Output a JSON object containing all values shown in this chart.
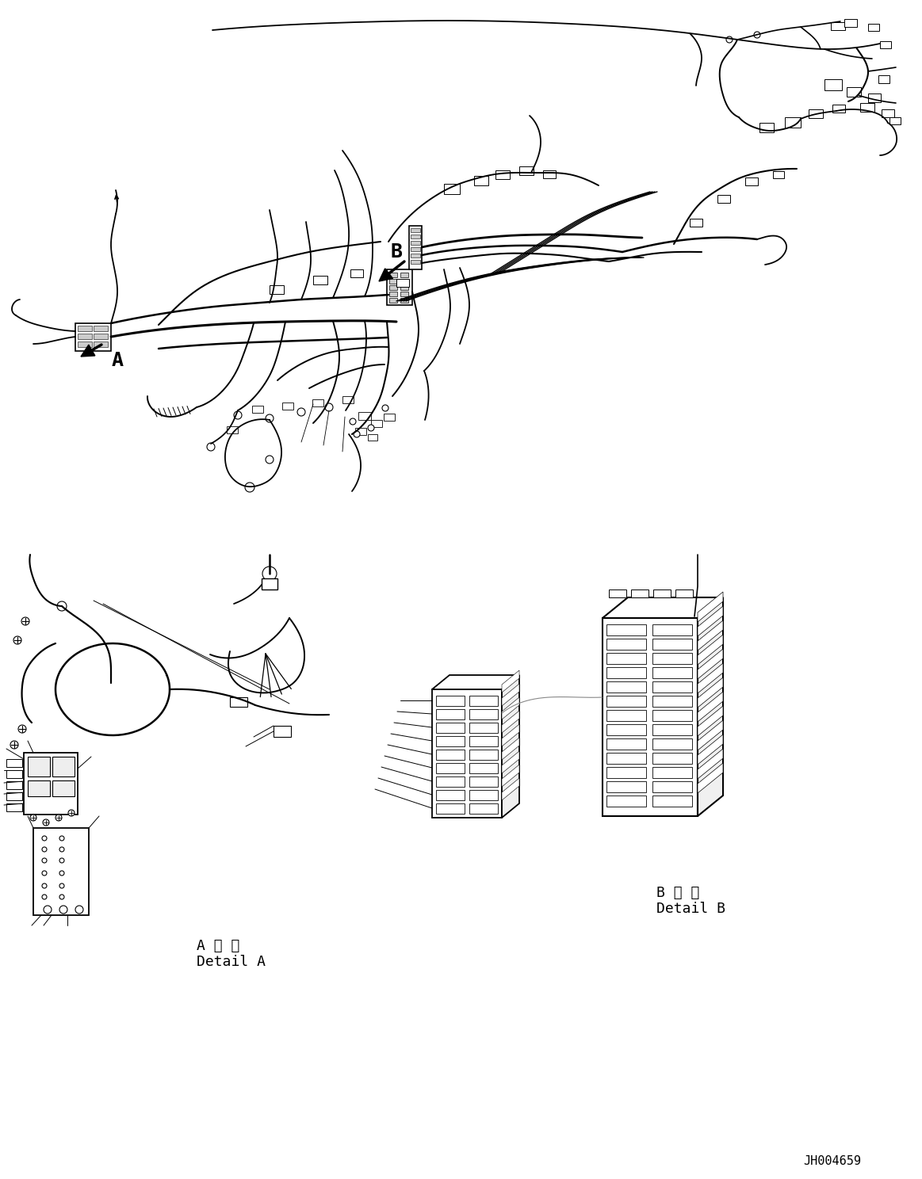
{
  "background_color": "#ffffff",
  "line_color": "#000000",
  "line_width": 1.2,
  "label_A": "A",
  "label_B": "B",
  "detail_A_label_jp": "A 詳 細",
  "detail_A_label_en": "Detail A",
  "detail_B_label_jp": "B 詳 細",
  "detail_B_label_en": "Detail B",
  "part_number": "JH004659",
  "font_family": "monospace",
  "figsize": [
    11.63,
    14.88
  ],
  "dpi": 100
}
